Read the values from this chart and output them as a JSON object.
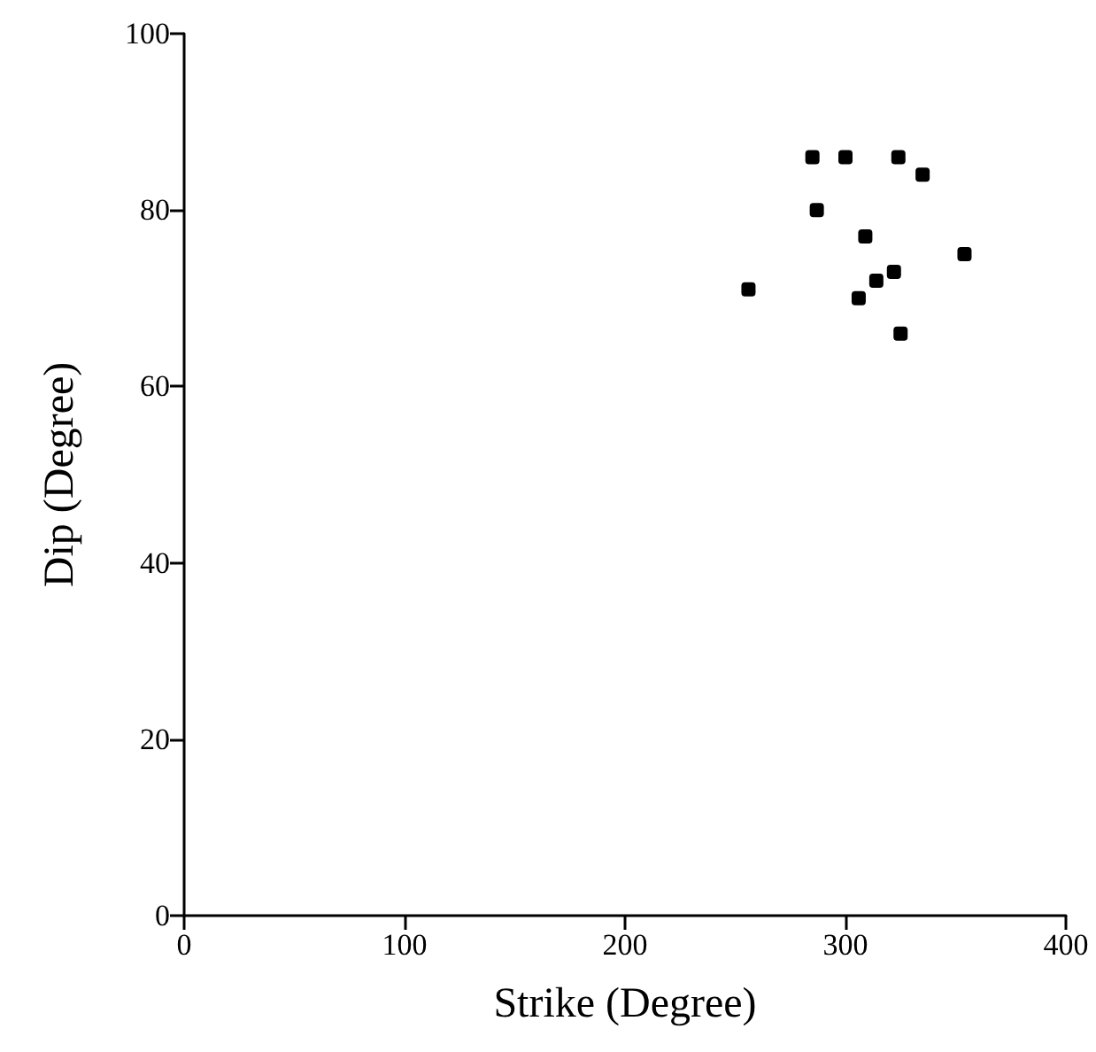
{
  "chart_data": {
    "type": "scatter",
    "xlabel": "Strike (Degree)",
    "ylabel": "Dip (Degree)",
    "x": [
      285,
      300,
      324,
      335,
      287,
      309,
      354,
      322,
      314,
      306,
      256,
      325
    ],
    "values": [
      86,
      86,
      86,
      84,
      80,
      77,
      75,
      73,
      72,
      70,
      71,
      66
    ],
    "color": "#000000",
    "marker": "square",
    "xlim": [
      0,
      400
    ],
    "xticks": [
      0,
      100,
      200,
      300,
      400
    ],
    "ylim": [
      0,
      100
    ],
    "yticks": [
      0,
      20,
      40,
      60,
      80,
      100
    ],
    "grid": false
  }
}
